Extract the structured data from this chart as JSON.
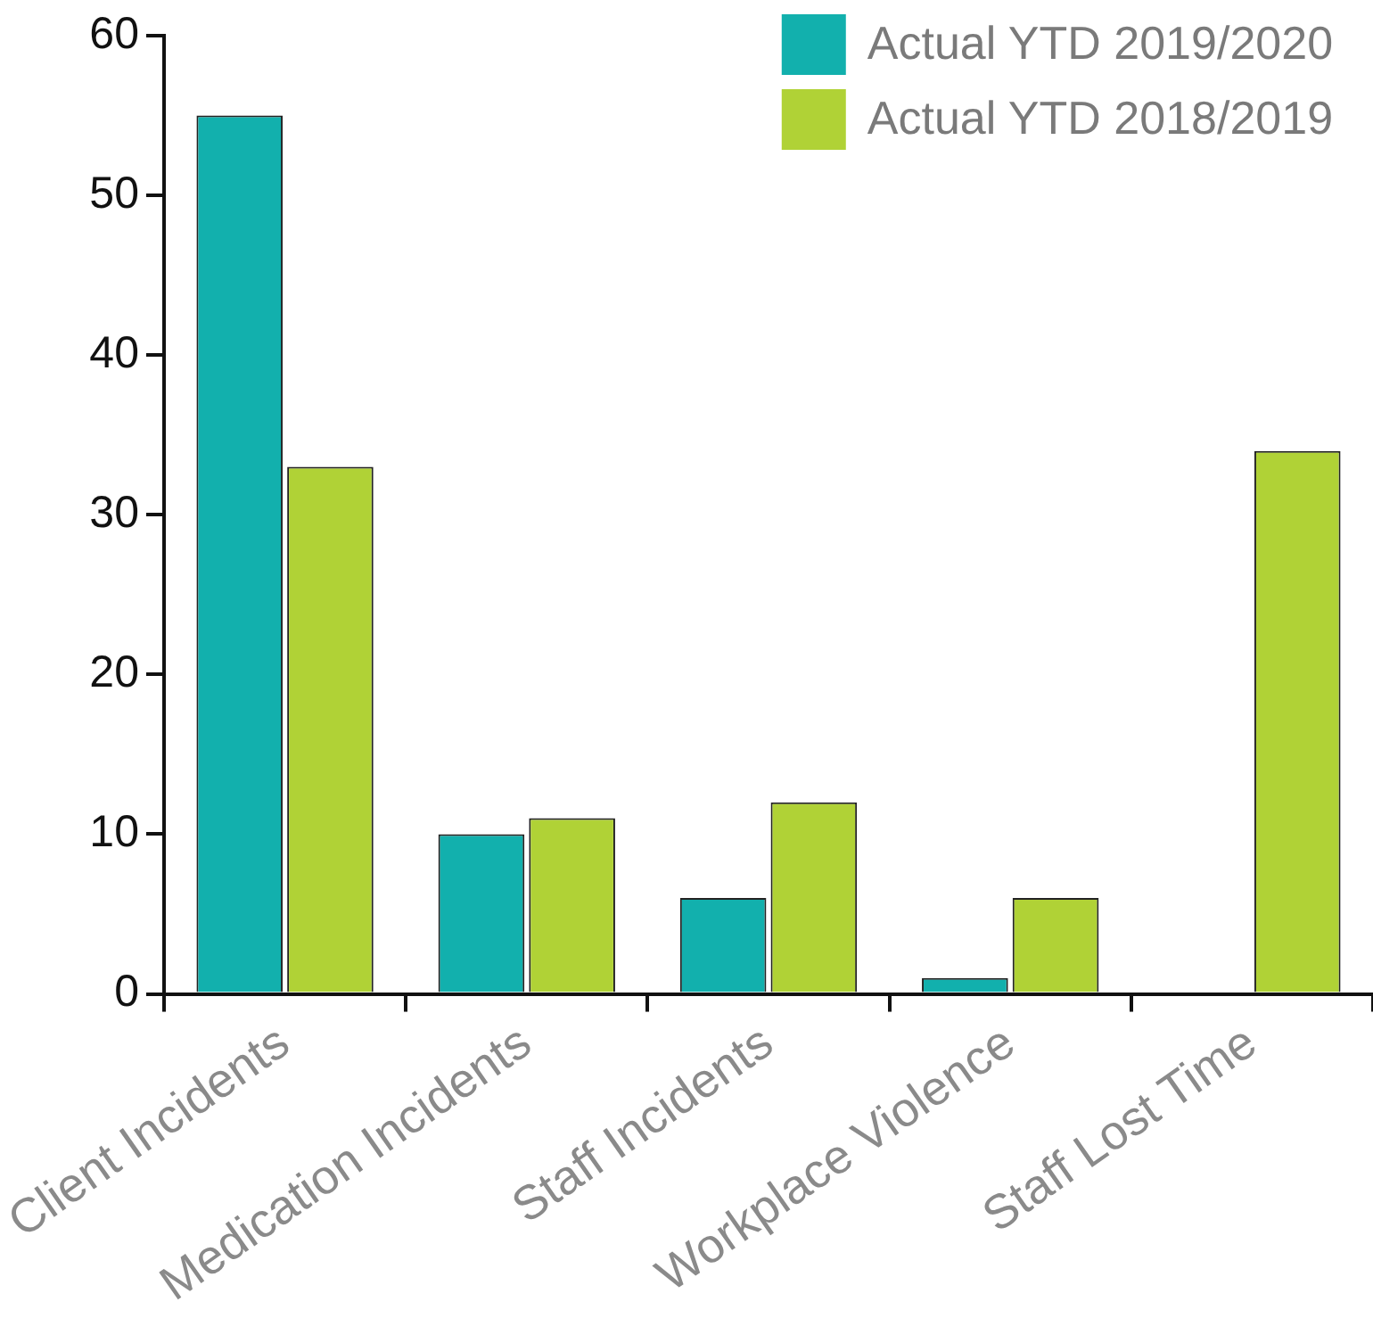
{
  "chart_data": {
    "type": "bar",
    "categories": [
      "Client Incidents",
      "Medication Incidents",
      "Staff Incidents",
      "Workplace Violence",
      "Staff Lost Time"
    ],
    "series": [
      {
        "name": "Actual YTD 2019/2020",
        "color": "#12b0ad",
        "values": [
          55,
          10,
          6,
          1,
          0
        ]
      },
      {
        "name": "Actual YTD 2018/2019",
        "color": "#b0d236",
        "values": [
          33,
          11,
          12,
          6,
          34
        ]
      }
    ],
    "ylim": [
      0,
      60
    ],
    "yticks": [
      0,
      10,
      20,
      30,
      40,
      50,
      60
    ],
    "grid": false,
    "legend": "top right"
  }
}
